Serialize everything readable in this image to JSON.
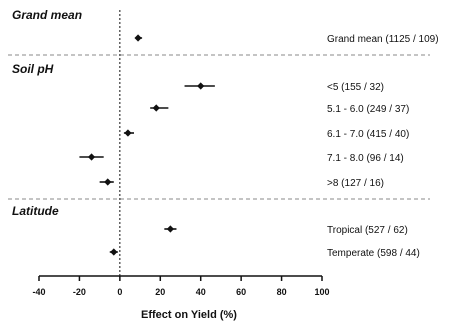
{
  "chart_data": {
    "type": "scatter",
    "xlabel": "Effect on Yield (%)",
    "xlim": [
      -40,
      100
    ],
    "xticks": [
      -40,
      -20,
      0,
      20,
      40,
      60,
      80,
      100
    ],
    "reference_line_x": 0,
    "sections": [
      {
        "title": "Grand mean",
        "rows": [
          {
            "label": "Grand mean (1125 / 109)",
            "estimate": 9,
            "ci": [
              8,
              11
            ]
          }
        ]
      },
      {
        "title": "Soil pH",
        "rows": [
          {
            "label": "<5 (155 / 32)",
            "estimate": 40,
            "ci": [
              32,
              47
            ]
          },
          {
            "label": "5.1 - 6.0 (249 / 37)",
            "estimate": 18,
            "ci": [
              15,
              24
            ]
          },
          {
            "label": "6.1 - 7.0 (415 / 40)",
            "estimate": 4,
            "ci": [
              2,
              7
            ]
          },
          {
            "label": "7.1 - 8.0 (96 / 14)",
            "estimate": -14,
            "ci": [
              -20,
              -8
            ]
          },
          {
            "label": ">8 (127 / 16)",
            "estimate": -6,
            "ci": [
              -10,
              -3
            ]
          }
        ]
      },
      {
        "title": "Latitude",
        "rows": [
          {
            "label": "Tropical (527 / 62)",
            "estimate": 25,
            "ci": [
              22,
              28
            ]
          },
          {
            "label": "Temperate (598 / 44)",
            "estimate": -3,
            "ci": [
              -5,
              -1
            ]
          }
        ]
      }
    ]
  }
}
